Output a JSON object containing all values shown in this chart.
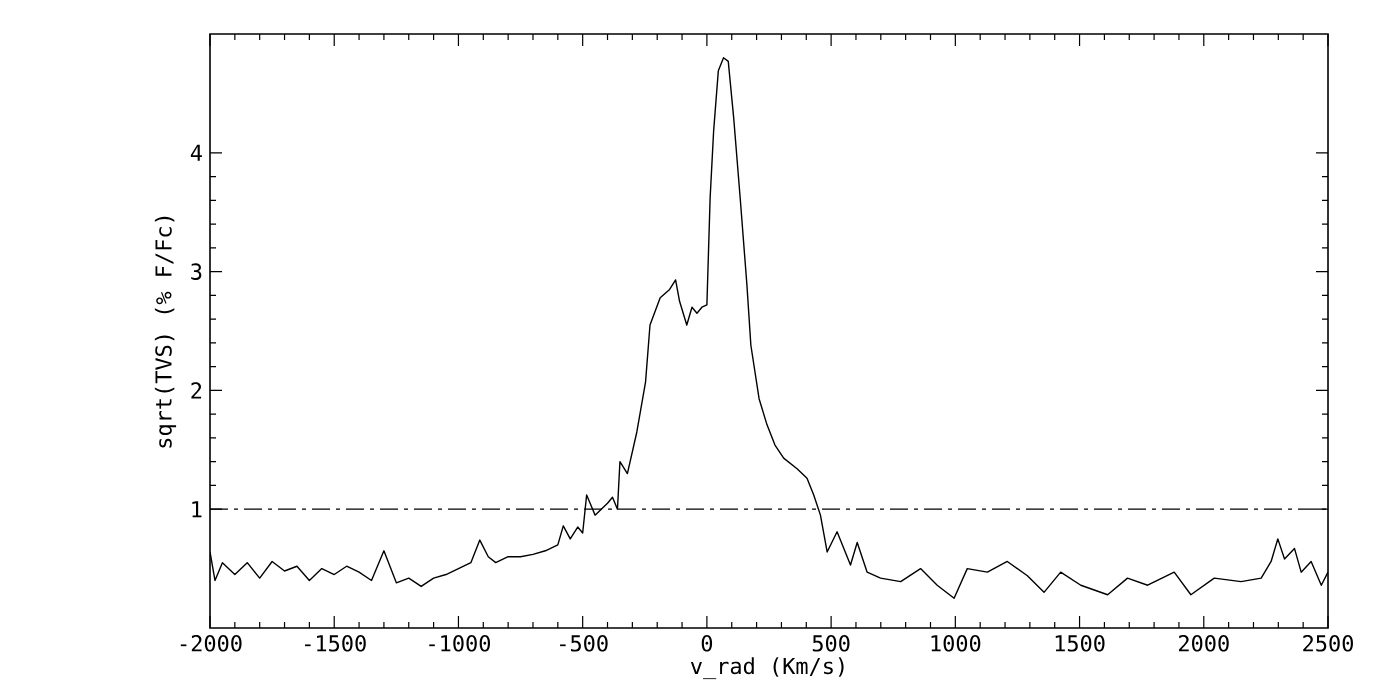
{
  "chart_data": {
    "type": "line",
    "xlabel": "v_rad (Km/s)",
    "ylabel": "sqrt(TVS) (% F/Fc)",
    "xlim": [
      -2000,
      2500
    ],
    "ylim": [
      0,
      5
    ],
    "xticks": [
      -2000,
      -1500,
      -1000,
      -500,
      0,
      500,
      1000,
      1500,
      2000,
      2500
    ],
    "yticks": [
      1,
      2,
      3,
      4
    ],
    "grid": false,
    "marker": "none",
    "line_style": "solid",
    "ref_lines": [
      {
        "axis": "y",
        "value": 1,
        "line_style": "dashdot",
        "color": "#000000"
      }
    ],
    "series": [
      {
        "color": "#000000",
        "x": [
          -2000,
          -1980,
          -1950,
          -1900,
          -1850,
          -1800,
          -1750,
          -1700,
          -1650,
          -1600,
          -1550,
          -1500,
          -1450,
          -1400,
          -1350,
          -1300,
          -1250,
          -1200,
          -1150,
          -1100,
          -1050,
          -1000,
          -950,
          -914,
          -880,
          -850,
          -800,
          -750,
          -700,
          -650,
          -600,
          -578,
          -550,
          -520,
          -500,
          -484,
          -450,
          -400,
          -380,
          -360,
          -350,
          -320,
          -282,
          -247,
          -229,
          -188,
          -150,
          -126,
          -110,
          -81,
          -60,
          -40,
          -20,
          0,
          13,
          27,
          46,
          67,
          86,
          108,
          134,
          161,
          177,
          210,
          242,
          274,
          309,
          363,
          403,
          430,
          457,
          484,
          524,
          578,
          605,
          645,
          699,
          780,
          860,
          927,
          995,
          1048,
          1129,
          1209,
          1290,
          1357,
          1424,
          1505,
          1613,
          1693,
          1774,
          1881,
          1948,
          2042,
          2150,
          2231,
          2271,
          2298,
          2325,
          2365,
          2392,
          2432,
          2473,
          2500
        ],
        "values": [
          0.64,
          0.4,
          0.55,
          0.45,
          0.55,
          0.42,
          0.56,
          0.48,
          0.52,
          0.4,
          0.5,
          0.45,
          0.52,
          0.47,
          0.4,
          0.65,
          0.38,
          0.42,
          0.35,
          0.42,
          0.45,
          0.5,
          0.55,
          0.74,
          0.6,
          0.55,
          0.6,
          0.6,
          0.62,
          0.65,
          0.7,
          0.86,
          0.75,
          0.85,
          0.8,
          1.12,
          0.95,
          1.05,
          1.1,
          1.0,
          1.4,
          1.3,
          1.65,
          2.07,
          2.55,
          2.78,
          2.85,
          2.93,
          2.75,
          2.55,
          2.7,
          2.65,
          2.7,
          2.72,
          3.62,
          4.18,
          4.69,
          4.8,
          4.77,
          4.29,
          3.62,
          2.89,
          2.38,
          1.93,
          1.71,
          1.54,
          1.43,
          1.34,
          1.26,
          1.12,
          0.95,
          0.64,
          0.81,
          0.53,
          0.72,
          0.47,
          0.42,
          0.39,
          0.5,
          0.36,
          0.25,
          0.5,
          0.47,
          0.56,
          0.44,
          0.3,
          0.47,
          0.36,
          0.28,
          0.42,
          0.36,
          0.47,
          0.28,
          0.42,
          0.39,
          0.42,
          0.56,
          0.75,
          0.58,
          0.67,
          0.47,
          0.56,
          0.36,
          0.47
        ]
      }
    ]
  }
}
